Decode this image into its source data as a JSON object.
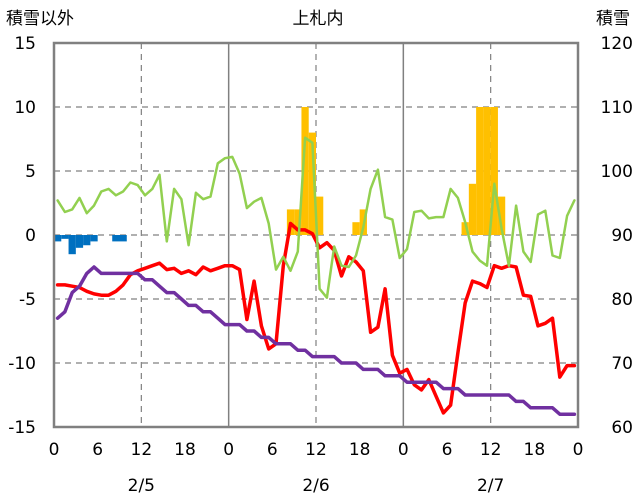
{
  "chart_data": {
    "type": "line",
    "title": "上札内",
    "left_axis_label": "積雪以外",
    "right_axis_label": "積雪",
    "ylim_left": [
      -15,
      15
    ],
    "ylim_right": [
      60,
      120
    ],
    "y_ticks_left": [
      "15",
      "10",
      "5",
      "0",
      "-5",
      "-10",
      "-15"
    ],
    "y_ticks_right": [
      "120",
      "110",
      "100",
      "90",
      "80",
      "70",
      "60"
    ],
    "x_range_hours": [
      0,
      72
    ],
    "x_tick_labels": [
      "0",
      "6",
      "12",
      "18",
      "0",
      "6",
      "12",
      "18",
      "0",
      "6",
      "12",
      "18",
      "0"
    ],
    "date_labels": [
      {
        "label": "2/5",
        "at_hour": 12
      },
      {
        "label": "2/6",
        "at_hour": 36
      },
      {
        "label": "2/7",
        "at_hour": 60
      }
    ],
    "grid": true,
    "colors": {
      "temperature": "#ff0000",
      "dewpoint_like": "#92d050",
      "snow_depth": "#7030a0",
      "snowfall": "#ffc000",
      "precip_negative": "#0070c0"
    },
    "series": [
      {
        "key": "temperature",
        "axis": "left",
        "x": [
          0,
          1,
          2,
          3,
          4,
          5,
          6,
          7,
          8,
          9,
          10,
          11,
          12,
          13,
          14,
          15,
          16,
          17,
          18,
          19,
          20,
          21,
          22,
          23,
          24,
          25,
          26,
          27,
          28,
          29,
          30,
          31,
          32,
          33,
          34,
          35,
          36,
          37,
          38,
          39,
          40,
          41,
          42,
          43,
          44,
          45,
          46,
          47,
          48,
          49,
          50,
          51,
          52,
          53,
          54,
          55,
          56,
          57,
          58,
          59,
          60,
          61,
          62,
          63,
          64,
          65,
          66,
          67,
          68,
          69,
          70,
          71
        ],
        "y": [
          -3.9,
          -3.9,
          -4.0,
          -4.1,
          -4.4,
          -4.6,
          -4.7,
          -4.7,
          -4.4,
          -3.9,
          -3.1,
          -2.8,
          -2.6,
          -2.4,
          -2.2,
          -2.7,
          -2.6,
          -3.0,
          -2.8,
          -3.1,
          -2.5,
          -2.8,
          -2.6,
          -2.4,
          -2.4,
          -2.7,
          -6.6,
          -3.6,
          -7.1,
          -8.9,
          -8.5,
          -2.4,
          0.9,
          0.4,
          0.4,
          0.1,
          -1.0,
          -0.6,
          -1.2,
          -3.2,
          -1.7,
          -2.1,
          -2.8,
          -7.6,
          -7.2,
          -4.2,
          -9.4,
          -10.8,
          -10.5,
          -11.7,
          -12.1,
          -11.3,
          -12.6,
          -13.9,
          -13.3,
          -9.2,
          -5.3,
          -3.6,
          -3.8,
          -4.1,
          -2.4,
          -2.6,
          -2.4,
          -2.5,
          -4.7,
          -4.8,
          -7.1,
          -6.9,
          -6.5,
          -11.1,
          -10.2,
          -10.2
        ]
      },
      {
        "key": "dewpoint_like",
        "axis": "left",
        "x": [
          0,
          1,
          2,
          3,
          4,
          5,
          6,
          7,
          8,
          9,
          10,
          11,
          12,
          13,
          14,
          15,
          16,
          17,
          18,
          19,
          20,
          21,
          22,
          23,
          24,
          25,
          26,
          27,
          28,
          29,
          30,
          31,
          32,
          33,
          34,
          35,
          36,
          37,
          38,
          39,
          40,
          41,
          42,
          43,
          44,
          45,
          46,
          47,
          48,
          49,
          50,
          51,
          52,
          53,
          54,
          55,
          56,
          57,
          58,
          59,
          60,
          61,
          62,
          63,
          64,
          65,
          66,
          67,
          68,
          69,
          70,
          71
        ],
        "y": [
          2.7,
          1.8,
          2.0,
          2.9,
          1.7,
          2.3,
          3.4,
          3.6,
          3.1,
          3.4,
          4.1,
          3.9,
          3.1,
          3.6,
          4.7,
          -0.5,
          3.6,
          2.8,
          -0.8,
          3.3,
          2.8,
          3.0,
          5.6,
          6.0,
          6.1,
          4.8,
          2.1,
          2.6,
          2.9,
          0.9,
          -2.7,
          -1.7,
          -2.8,
          -1.3,
          7.6,
          7.2,
          -4.2,
          -4.9,
          -0.9,
          -2.4,
          -2.5,
          -1.6,
          0.6,
          3.6,
          5.1,
          1.4,
          1.2,
          -1.8,
          -1.1,
          1.8,
          1.9,
          1.3,
          1.4,
          1.4,
          3.6,
          2.9,
          1.0,
          -1.3,
          -2.0,
          -2.4,
          4.0,
          0.5,
          -2.4,
          2.3,
          -1.3,
          -2.1,
          1.6,
          1.9,
          -1.6,
          -1.8,
          1.5,
          2.7
        ]
      },
      {
        "key": "snow_depth",
        "axis": "right",
        "x": [
          0,
          1,
          2,
          3,
          4,
          5,
          6,
          7,
          8,
          9,
          10,
          11,
          12,
          13,
          14,
          15,
          16,
          17,
          18,
          19,
          20,
          21,
          22,
          23,
          24,
          25,
          26,
          27,
          28,
          29,
          30,
          31,
          32,
          33,
          34,
          35,
          36,
          37,
          38,
          39,
          40,
          41,
          42,
          43,
          44,
          45,
          46,
          47,
          48,
          49,
          50,
          51,
          52,
          53,
          54,
          55,
          56,
          57,
          58,
          59,
          60,
          61,
          62,
          63,
          64,
          65,
          66,
          67,
          68,
          69,
          70,
          71
        ],
        "y": [
          77,
          78,
          81,
          82,
          84,
          85,
          84,
          84,
          84,
          84,
          84,
          84,
          83,
          83,
          82,
          81,
          81,
          80,
          79,
          79,
          78,
          78,
          77,
          76,
          76,
          76,
          75,
          75,
          74,
          74,
          73,
          73,
          73,
          72,
          72,
          71,
          71,
          71,
          71,
          70,
          70,
          70,
          69,
          69,
          69,
          68,
          68,
          68,
          67,
          67,
          67,
          67,
          67,
          66,
          66,
          66,
          65,
          65,
          65,
          65,
          65,
          65,
          65,
          64,
          64,
          63,
          63,
          63,
          63,
          62,
          62,
          62
        ]
      }
    ],
    "bars": [
      {
        "key": "snowfall",
        "axis": "left",
        "x": [
          32,
          33,
          34,
          35,
          36,
          37,
          38,
          39,
          40,
          41,
          42,
          43,
          44,
          45,
          46,
          47,
          48,
          56,
          57,
          58,
          59,
          60,
          61,
          62,
          63,
          64,
          65,
          66
        ],
        "values": [
          2,
          2,
          10,
          8,
          3,
          0,
          0,
          0,
          0,
          1,
          2,
          0,
          0,
          0,
          0,
          0,
          0,
          1,
          4,
          10,
          10,
          10,
          3,
          0,
          0,
          0,
          0,
          0
        ]
      },
      {
        "key": "precip_negative",
        "axis": "left",
        "x": [
          0,
          1,
          2,
          3,
          4,
          5,
          6,
          7,
          8,
          9,
          10
        ],
        "values": [
          -0.5,
          -0.3,
          -1.5,
          -1.0,
          -0.8,
          -0.5,
          0,
          0,
          -0.5,
          -0.5,
          0
        ]
      }
    ]
  }
}
